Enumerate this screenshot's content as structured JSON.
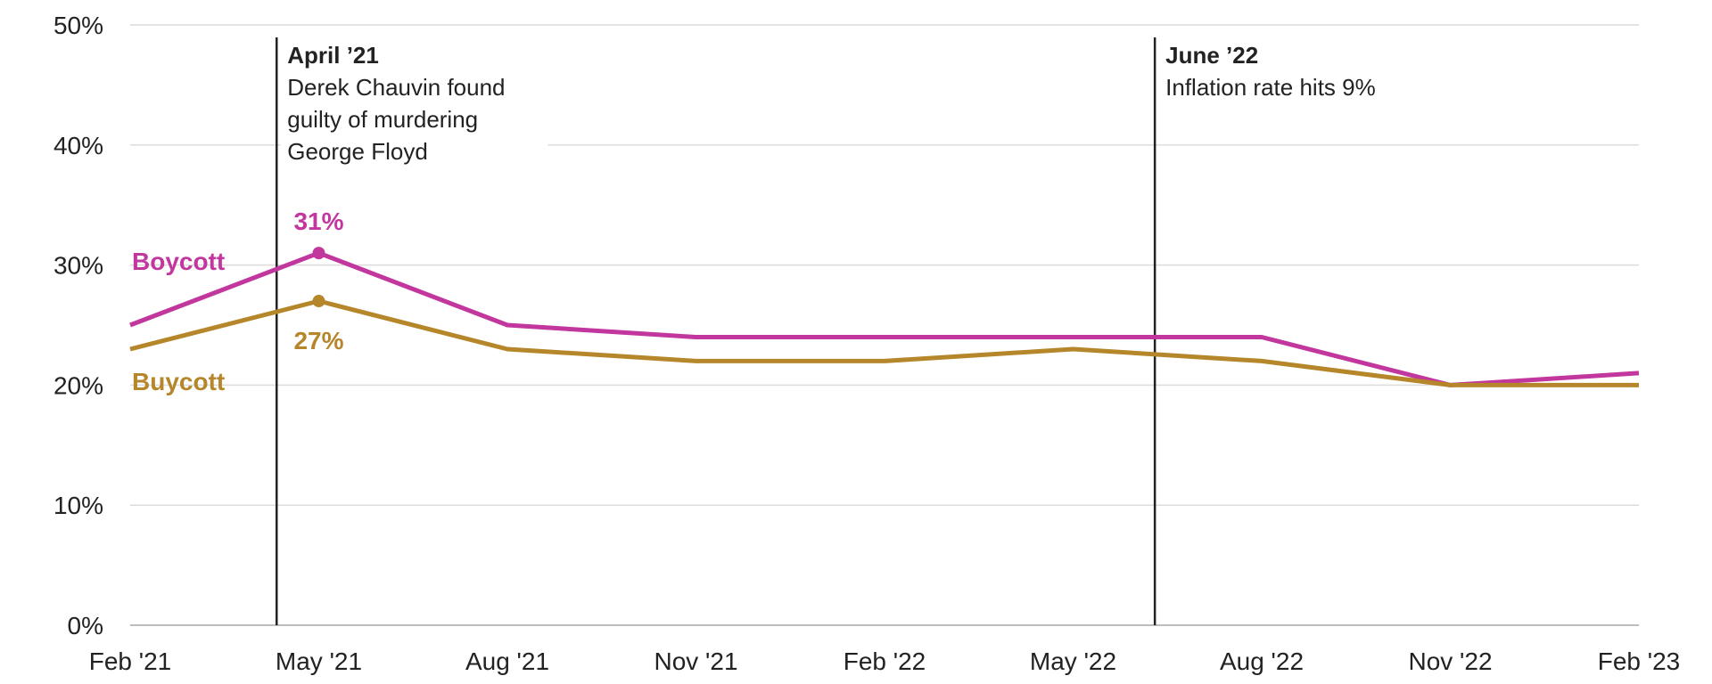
{
  "chart_data": {
    "type": "line",
    "title": "",
    "xlabel": "",
    "ylabel": "",
    "categories": [
      "Feb '21",
      "May '21",
      "Aug '21",
      "Nov '21",
      "Feb '22",
      "May '22",
      "Aug '22",
      "Nov '22",
      "Feb '23"
    ],
    "ylim": [
      0,
      50
    ],
    "yticks": [
      "0%",
      "10%",
      "20%",
      "30%",
      "40%",
      "50%"
    ],
    "grid": true,
    "series": [
      {
        "name": "Boycott",
        "color": "#c2379e",
        "values": [
          25,
          31,
          25,
          24,
          24,
          24,
          24,
          20,
          21
        ]
      },
      {
        "name": "Buycott",
        "color": "#b5862a",
        "values": [
          23,
          27,
          23,
          22,
          22,
          23,
          22,
          20,
          20
        ]
      }
    ],
    "point_labels": [
      {
        "series": 0,
        "index": 1,
        "text": "31%"
      },
      {
        "series": 1,
        "index": 1,
        "text": "27%"
      }
    ],
    "annotations": [
      {
        "x": "April '21",
        "title": "April ’21",
        "lines": [
          "Derek Chauvin found",
          "guilty of murdering",
          "George Floyd"
        ]
      },
      {
        "x": "June '22",
        "title": "June ’22",
        "lines": [
          "Inflation rate hits 9%"
        ]
      }
    ]
  }
}
